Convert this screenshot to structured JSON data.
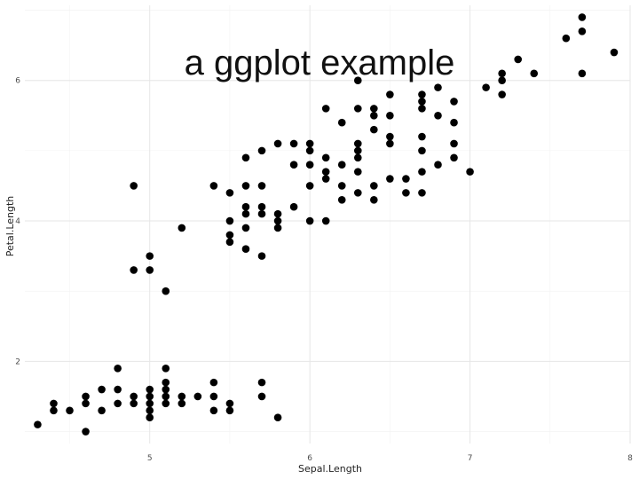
{
  "chart_data": {
    "type": "scatter",
    "title": "a ggplot example",
    "xlabel": "Sepal.Length",
    "ylabel": "Petal.Length",
    "xlim": [
      4.22,
      8.0
    ],
    "ylim": [
      0.83,
      7.07
    ],
    "x_ticks": [
      5,
      6,
      7,
      8
    ],
    "x_tick_labels": [
      "5",
      "6",
      "7",
      "8"
    ],
    "y_ticks": [
      2,
      4,
      6
    ],
    "y_tick_labels": [
      "2",
      "4",
      "6"
    ],
    "x_minor": [
      4.5,
      5.5,
      6.5,
      7.5
    ],
    "y_minor": [
      1,
      3,
      5,
      7
    ],
    "grid": true,
    "point_color": "#000000",
    "points": [
      [
        4.3,
        1.1
      ],
      [
        4.4,
        1.3
      ],
      [
        4.4,
        1.4
      ],
      [
        4.5,
        1.3
      ],
      [
        4.6,
        1.0
      ],
      [
        4.6,
        1.4
      ],
      [
        4.6,
        1.5
      ],
      [
        4.7,
        1.3
      ],
      [
        4.7,
        1.6
      ],
      [
        4.8,
        1.4
      ],
      [
        4.8,
        1.6
      ],
      [
        4.8,
        1.9
      ],
      [
        4.9,
        1.4
      ],
      [
        4.9,
        1.5
      ],
      [
        4.9,
        3.3
      ],
      [
        4.9,
        4.5
      ],
      [
        5.0,
        1.2
      ],
      [
        5.0,
        1.3
      ],
      [
        5.0,
        1.4
      ],
      [
        5.0,
        1.5
      ],
      [
        5.0,
        1.6
      ],
      [
        5.0,
        3.3
      ],
      [
        5.0,
        3.5
      ],
      [
        5.1,
        1.4
      ],
      [
        5.1,
        1.5
      ],
      [
        5.1,
        1.6
      ],
      [
        5.1,
        1.7
      ],
      [
        5.1,
        1.9
      ],
      [
        5.1,
        3.0
      ],
      [
        5.2,
        1.4
      ],
      [
        5.2,
        1.5
      ],
      [
        5.2,
        3.9
      ],
      [
        5.3,
        1.5
      ],
      [
        5.4,
        1.3
      ],
      [
        5.4,
        1.5
      ],
      [
        5.4,
        1.7
      ],
      [
        5.4,
        4.5
      ],
      [
        5.5,
        1.3
      ],
      [
        5.5,
        1.4
      ],
      [
        5.5,
        3.7
      ],
      [
        5.5,
        3.8
      ],
      [
        5.5,
        4.0
      ],
      [
        5.5,
        4.4
      ],
      [
        5.6,
        3.6
      ],
      [
        5.6,
        3.9
      ],
      [
        5.6,
        4.1
      ],
      [
        5.6,
        4.2
      ],
      [
        5.6,
        4.5
      ],
      [
        5.6,
        4.9
      ],
      [
        5.7,
        1.5
      ],
      [
        5.7,
        1.7
      ],
      [
        5.7,
        3.5
      ],
      [
        5.7,
        4.1
      ],
      [
        5.7,
        4.2
      ],
      [
        5.7,
        4.5
      ],
      [
        5.7,
        5.0
      ],
      [
        5.8,
        1.2
      ],
      [
        5.8,
        3.9
      ],
      [
        5.8,
        4.0
      ],
      [
        5.8,
        4.1
      ],
      [
        5.8,
        5.1
      ],
      [
        5.9,
        4.2
      ],
      [
        5.9,
        4.8
      ],
      [
        5.9,
        5.1
      ],
      [
        6.0,
        4.0
      ],
      [
        6.0,
        4.5
      ],
      [
        6.0,
        4.8
      ],
      [
        6.0,
        5.0
      ],
      [
        6.0,
        5.1
      ],
      [
        6.1,
        4.0
      ],
      [
        6.1,
        4.6
      ],
      [
        6.1,
        4.7
      ],
      [
        6.1,
        4.9
      ],
      [
        6.1,
        5.6
      ],
      [
        6.2,
        4.3
      ],
      [
        6.2,
        4.5
      ],
      [
        6.2,
        4.8
      ],
      [
        6.2,
        5.4
      ],
      [
        6.3,
        4.4
      ],
      [
        6.3,
        4.7
      ],
      [
        6.3,
        4.9
      ],
      [
        6.3,
        5.0
      ],
      [
        6.3,
        5.1
      ],
      [
        6.3,
        5.6
      ],
      [
        6.3,
        6.0
      ],
      [
        6.4,
        4.3
      ],
      [
        6.4,
        4.5
      ],
      [
        6.4,
        5.3
      ],
      [
        6.4,
        5.5
      ],
      [
        6.4,
        5.6
      ],
      [
        6.5,
        4.6
      ],
      [
        6.5,
        5.1
      ],
      [
        6.5,
        5.2
      ],
      [
        6.5,
        5.5
      ],
      [
        6.5,
        5.8
      ],
      [
        6.6,
        4.4
      ],
      [
        6.6,
        4.6
      ],
      [
        6.7,
        4.4
      ],
      [
        6.7,
        4.7
      ],
      [
        6.7,
        5.0
      ],
      [
        6.7,
        5.2
      ],
      [
        6.7,
        5.6
      ],
      [
        6.7,
        5.7
      ],
      [
        6.7,
        5.8
      ],
      [
        6.8,
        4.8
      ],
      [
        6.8,
        5.5
      ],
      [
        6.8,
        5.9
      ],
      [
        6.9,
        4.9
      ],
      [
        6.9,
        5.1
      ],
      [
        6.9,
        5.4
      ],
      [
        6.9,
        5.7
      ],
      [
        7.0,
        4.7
      ],
      [
        7.1,
        5.9
      ],
      [
        7.2,
        5.8
      ],
      [
        7.2,
        6.0
      ],
      [
        7.2,
        6.1
      ],
      [
        7.3,
        6.3
      ],
      [
        7.4,
        6.1
      ],
      [
        7.6,
        6.6
      ],
      [
        7.7,
        6.1
      ],
      [
        7.7,
        6.7
      ],
      [
        7.7,
        6.9
      ],
      [
        7.9,
        6.4
      ]
    ]
  }
}
